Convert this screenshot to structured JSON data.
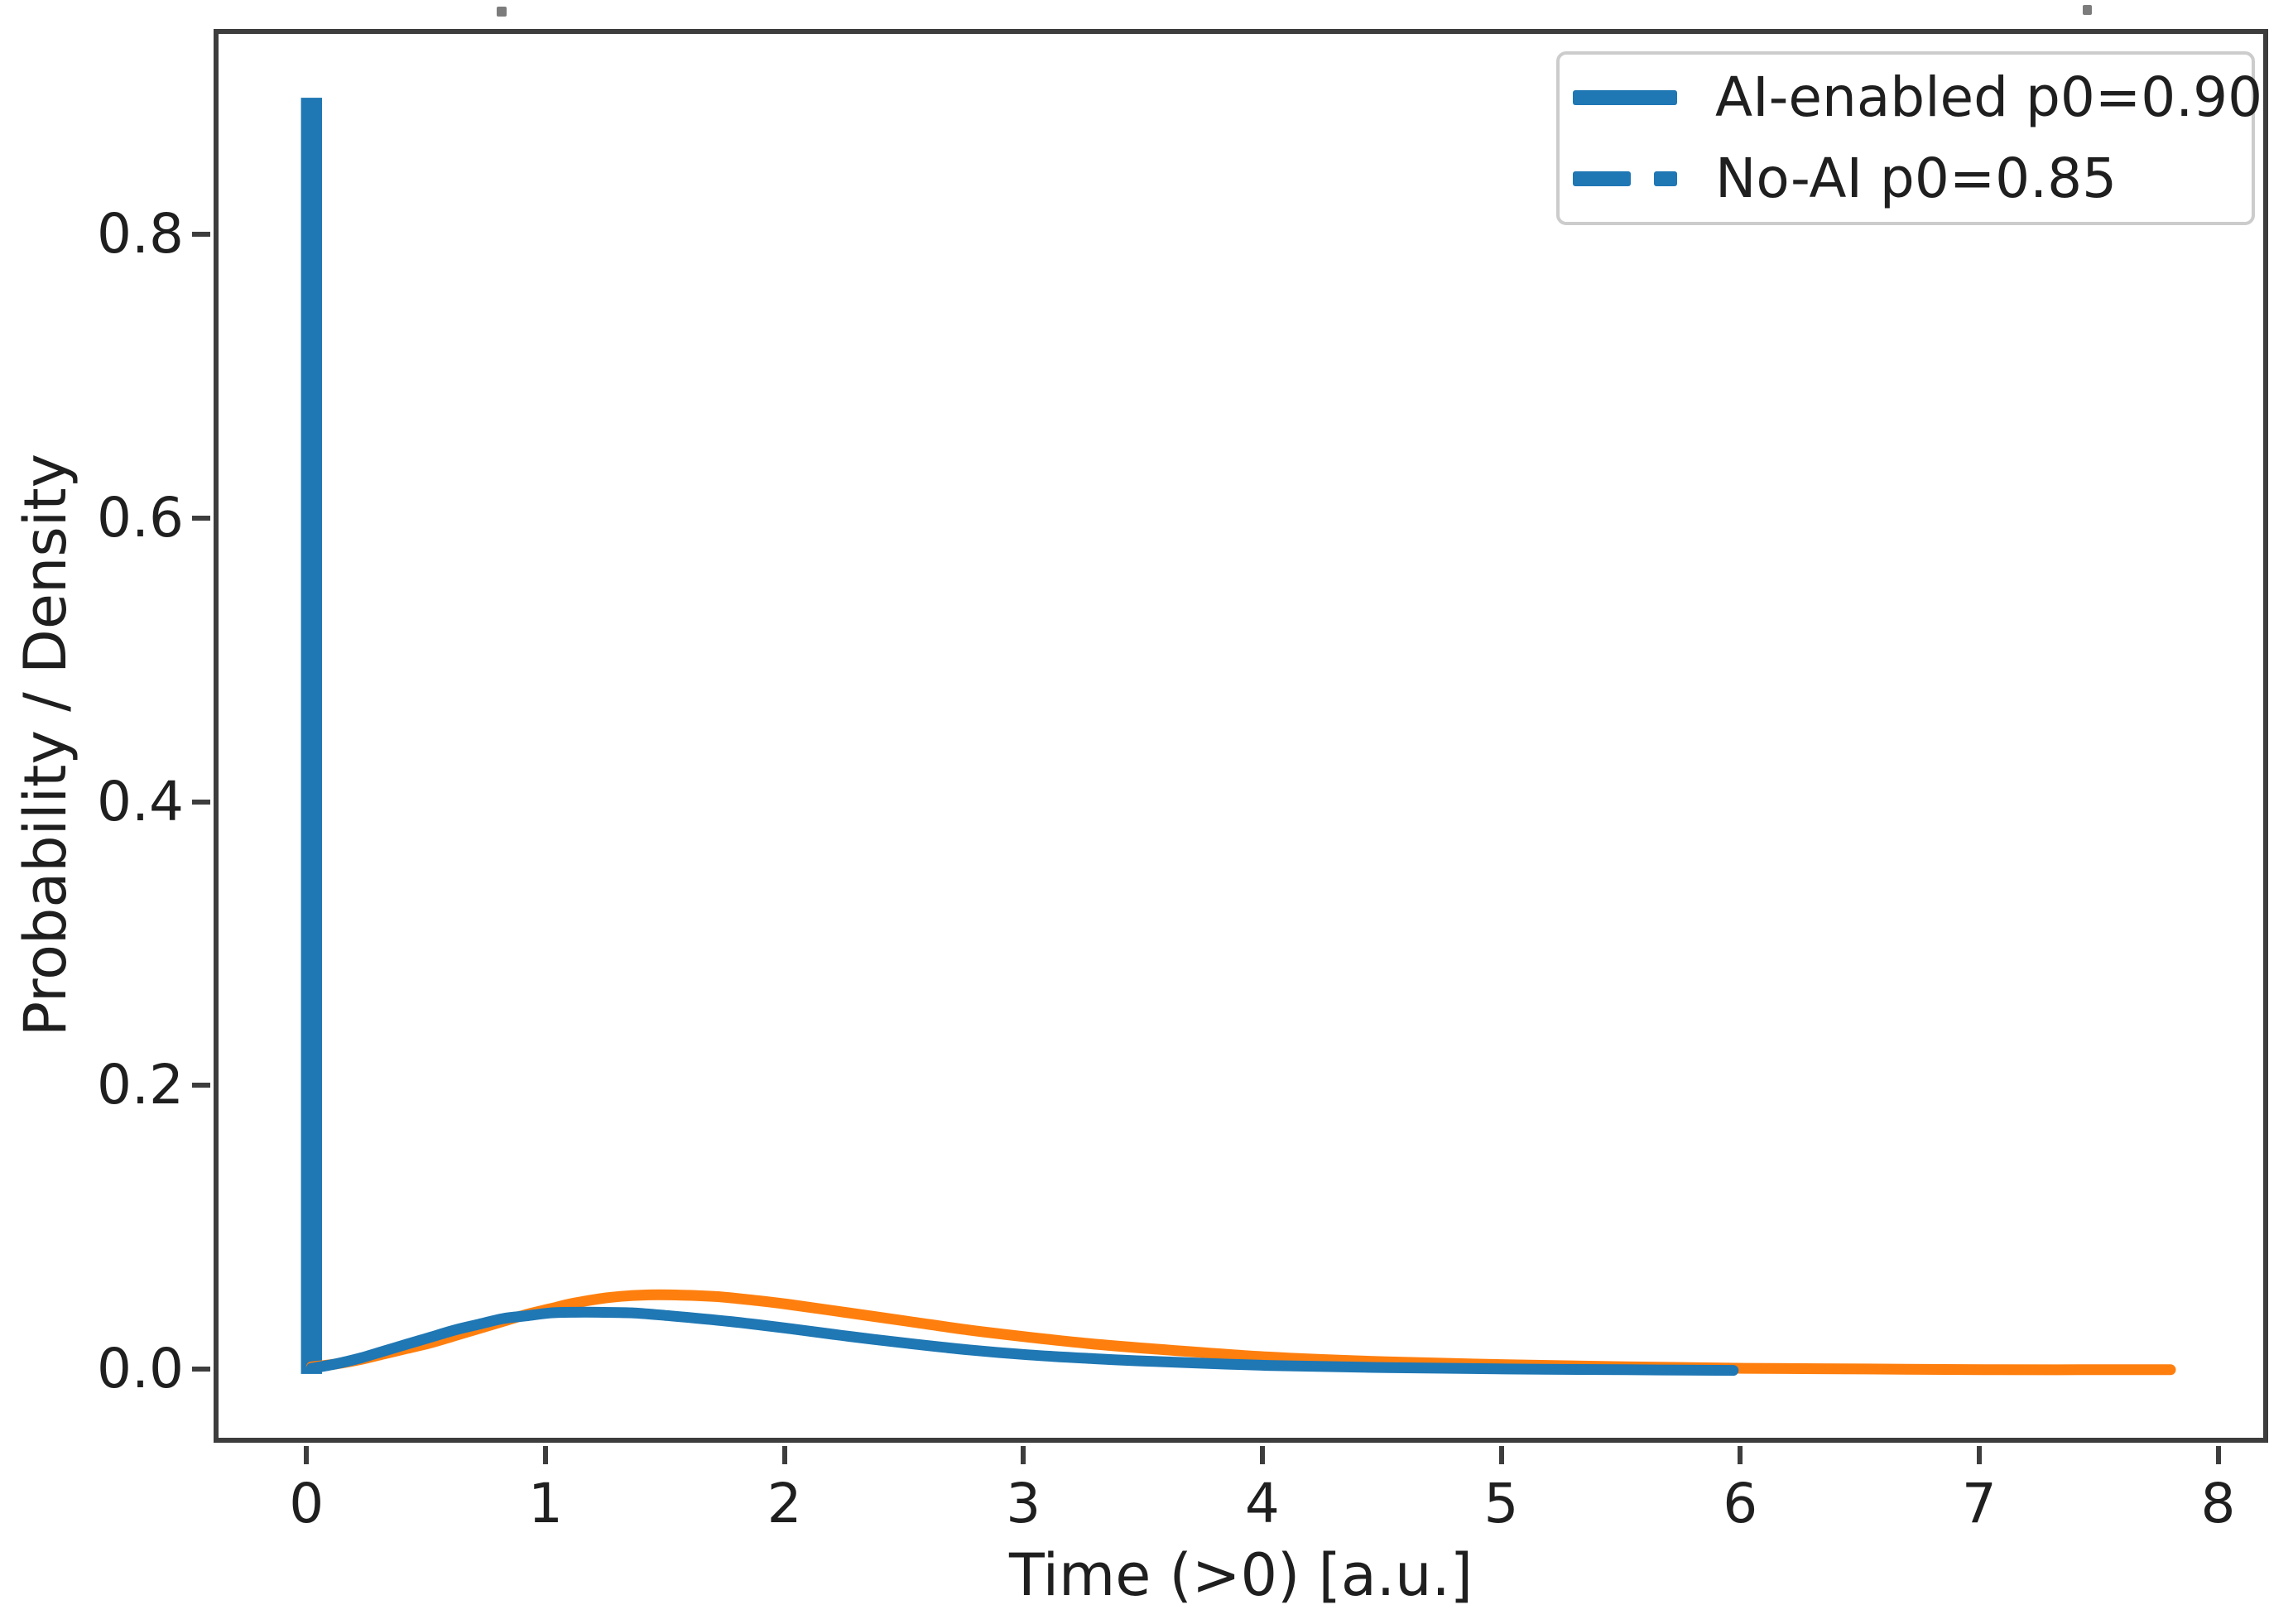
{
  "figure": {
    "background": "#ffffff",
    "spine_color": "#3d3d3d",
    "tick_color": "#3d3d3d",
    "text_color": "#1f1f1f",
    "legend_border_color": "#cccccc"
  },
  "chart_data": {
    "type": "line",
    "title": "",
    "xlabel": "Time (>0) [a.u.]",
    "ylabel": "Probability / Density",
    "xlim": [
      -0.389,
      8.168
    ],
    "ylim": [
      -0.045,
      0.945
    ],
    "x_ticks": [
      0,
      1,
      2,
      3,
      4,
      5,
      6,
      7,
      8
    ],
    "y_ticks": [
      0.0,
      0.2,
      0.4,
      0.6,
      0.8
    ],
    "y_tick_labels": [
      "0.0",
      "0.2",
      "0.4",
      "0.6",
      "0.8"
    ],
    "grid": false,
    "legend": {
      "position": "upper right",
      "entries": [
        {
          "label": "AI-enabled p0=0.90",
          "line_style": "solid",
          "color": "#1f77b4"
        },
        {
          "label": "No-AI p0=0.85",
          "line_style": "dashed",
          "color": "#1f77b4"
        }
      ]
    },
    "point_mass_bar": {
      "x": 0,
      "height": 0.9,
      "width": 0.088,
      "color": "#1f77b4",
      "meaning": "probability mass at t=0, p0=0.90"
    },
    "series": [
      {
        "name": "AI-enabled continuous density (t>0)",
        "color": "#1f77b4",
        "line_width": 13,
        "x": [
          0,
          0.1,
          0.2,
          0.3,
          0.4,
          0.5,
          0.6,
          0.7,
          0.8,
          0.9,
          1.0,
          1.1,
          1.2,
          1.35,
          1.5,
          1.75,
          2.0,
          2.25,
          2.5,
          2.75,
          3.0,
          3.25,
          3.5,
          4.0,
          4.5,
          5.0,
          5.5,
          5.95
        ],
        "y": [
          0.004,
          0.007,
          0.011,
          0.016,
          0.021,
          0.026,
          0.031,
          0.035,
          0.039,
          0.041,
          0.043,
          0.0435,
          0.0435,
          0.043,
          0.041,
          0.037,
          0.032,
          0.0265,
          0.0215,
          0.017,
          0.0135,
          0.011,
          0.009,
          0.006,
          0.0045,
          0.0035,
          0.003,
          0.0025
        ]
      },
      {
        "name": "No-AI continuous density (t>0)",
        "color": "#ff7f0e",
        "line_width": 13,
        "x": [
          0,
          0.1,
          0.2,
          0.3,
          0.4,
          0.5,
          0.6,
          0.7,
          0.8,
          0.9,
          1.0,
          1.1,
          1.25,
          1.4,
          1.55,
          1.7,
          1.85,
          2.0,
          2.25,
          2.5,
          2.75,
          3.0,
          3.25,
          3.5,
          4.0,
          4.5,
          5.0,
          5.5,
          6.0,
          6.5,
          7.0,
          7.4,
          7.78
        ],
        "y": [
          0.005,
          0.007,
          0.01,
          0.014,
          0.018,
          0.022,
          0.027,
          0.032,
          0.037,
          0.042,
          0.046,
          0.05,
          0.054,
          0.0557,
          0.0556,
          0.0545,
          0.052,
          0.049,
          0.043,
          0.037,
          0.031,
          0.026,
          0.0215,
          0.018,
          0.012,
          0.0085,
          0.0065,
          0.005,
          0.004,
          0.0035,
          0.003,
          0.003,
          0.003
        ]
      }
    ]
  }
}
